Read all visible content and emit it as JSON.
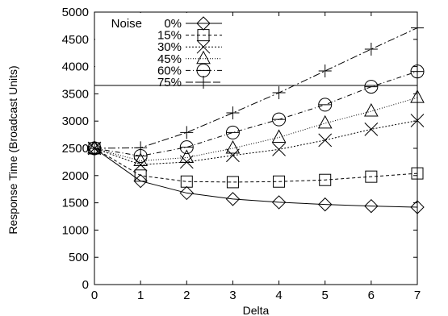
{
  "chart_data": {
    "type": "line",
    "xlabel": "Delta",
    "ylabel": "Response Time (Broadcast Units)",
    "xlim": [
      0,
      7
    ],
    "ylim": [
      0,
      5000
    ],
    "xticks": [
      "0",
      "1",
      "2",
      "3",
      "4",
      "5",
      "6",
      "7"
    ],
    "yticks": [
      "0",
      "500",
      "1000",
      "1500",
      "2000",
      "2500",
      "3000",
      "3500",
      "4000",
      "4500",
      "5000"
    ],
    "grid": false,
    "legend_placement": "top-left",
    "legend_title": "Noise",
    "x": [
      0,
      1,
      2,
      3,
      4,
      5,
      6,
      7
    ],
    "series": [
      {
        "name": "0%",
        "marker": "diamond",
        "dash": "solid",
        "values": [
          2500,
          1900,
          1680,
          1570,
          1510,
          1470,
          1440,
          1420
        ]
      },
      {
        "name": "15%",
        "marker": "square",
        "dash": "dashed",
        "values": [
          2500,
          2000,
          1890,
          1880,
          1890,
          1920,
          1980,
          2040
        ]
      },
      {
        "name": "30%",
        "marker": "x",
        "dash": "dotted",
        "values": [
          2500,
          2200,
          2250,
          2370,
          2480,
          2650,
          2850,
          3010
        ]
      },
      {
        "name": "45%",
        "marker": "triangle",
        "dash": "dotted-fine",
        "values": [
          2500,
          2270,
          2330,
          2500,
          2700,
          2960,
          3180,
          3430
        ]
      },
      {
        "name": "60%",
        "marker": "circle",
        "dash": "dash-dot",
        "values": [
          2500,
          2360,
          2520,
          2790,
          3030,
          3300,
          3630,
          3910
        ]
      },
      {
        "name": "75%",
        "marker": "plus",
        "dash": "dash-dot-long",
        "values": [
          2500,
          2510,
          2790,
          3150,
          3520,
          3920,
          4320,
          4710
        ]
      }
    ]
  }
}
